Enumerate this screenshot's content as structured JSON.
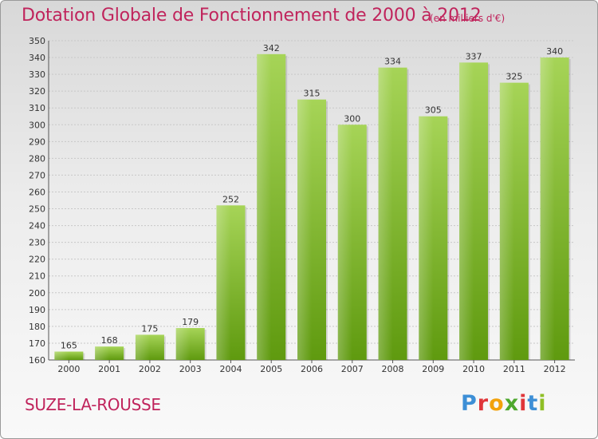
{
  "header": {
    "title": "Dotation Globale de Fonctionnement de 2000 à 2012",
    "subtitle": "(en milliers d'€)"
  },
  "footer": {
    "commune": "SUZE-LA-ROUSSE",
    "logo_text": "Proxiti"
  },
  "colors": {
    "title": "#c0245c",
    "bar_top": "#a6d457",
    "bar_bottom": "#5f9a0f",
    "grid": "#c8c8c8"
  },
  "chart_data": {
    "type": "bar",
    "categories": [
      "2000",
      "2001",
      "2002",
      "2003",
      "2004",
      "2005",
      "2006",
      "2007",
      "2008",
      "2009",
      "2010",
      "2011",
      "2012"
    ],
    "values": [
      165,
      168,
      175,
      179,
      252,
      342,
      315,
      300,
      334,
      305,
      337,
      325,
      340
    ],
    "ylim": [
      160,
      350
    ],
    "yticks": [
      160,
      170,
      180,
      190,
      200,
      210,
      220,
      230,
      240,
      250,
      260,
      270,
      280,
      290,
      300,
      310,
      320,
      330,
      340,
      350
    ],
    "grid": true,
    "data_labels": true,
    "xlabel": "",
    "ylabel": ""
  }
}
